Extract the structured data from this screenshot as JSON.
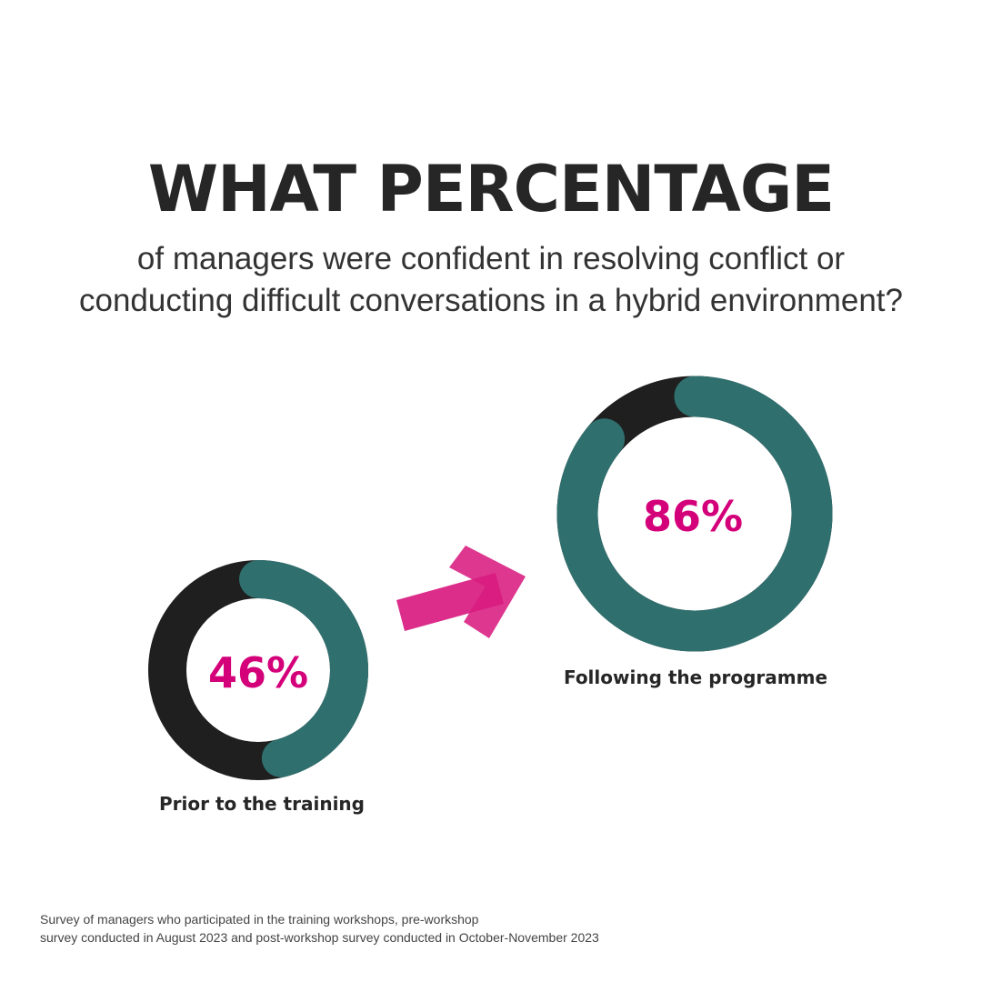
{
  "header": {
    "title": "WHAT PERCENTAGE",
    "subtitle_line1": "of managers were confident in resolving conflict or",
    "subtitle_line2": "conducting difficult conversations in a hybrid environment?"
  },
  "chart_data": {
    "type": "donut",
    "series": [
      {
        "value": 46,
        "value_label": "46%",
        "label": "Prior to the training"
      },
      {
        "value": 86,
        "value_label": "86%",
        "label": "Following the programme"
      }
    ],
    "colors": {
      "filled": "#2f6f6e",
      "remainder": "#1f1f1f",
      "value_text": "#d4007a",
      "arrow": "#d81b7f"
    }
  },
  "footnote": {
    "line1": "Survey of managers who participated in the training workshops, pre-workshop",
    "line2": "survey conducted in August 2023 and post-workshop survey conducted in October-November 2023"
  }
}
